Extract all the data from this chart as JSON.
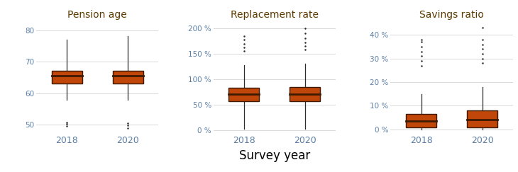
{
  "panels": [
    {
      "title": "Pension age",
      "ylim": [
        47,
        83
      ],
      "yticks": [
        50,
        60,
        70,
        80
      ],
      "yticklabels": [
        "50",
        "60",
        "70",
        "80"
      ],
      "years": [
        "2018",
        "2020"
      ],
      "boxes": [
        {
          "q1": 63,
          "median": 65.5,
          "q3": 67,
          "whislo": 58,
          "whishi": 77,
          "fliers_lo": [
            49.5,
            50.2,
            50.8
          ],
          "fliers_hi": []
        },
        {
          "q1": 63,
          "median": 65.5,
          "q3": 67,
          "whislo": 58,
          "whishi": 78,
          "fliers_lo": [
            49.0,
            49.8,
            50.5
          ],
          "fliers_hi": []
        }
      ]
    },
    {
      "title": "Replacement rate",
      "ylim": [
        -8,
        215
      ],
      "yticks": [
        0,
        50,
        100,
        150,
        200
      ],
      "yticklabels": [
        "0 %",
        "50 %",
        "100 %",
        "150 %",
        "200 %"
      ],
      "years": [
        "2018",
        "2020"
      ],
      "boxes": [
        {
          "q1": 57,
          "median": 70,
          "q3": 83,
          "whislo": 2,
          "whishi": 127,
          "fliers_lo": [],
          "fliers_hi": [
            155,
            163,
            170,
            178,
            185
          ]
        },
        {
          "q1": 57,
          "median": 70,
          "q3": 85,
          "whislo": 2,
          "whishi": 130,
          "fliers_lo": [],
          "fliers_hi": [
            158,
            165,
            172,
            180,
            190,
            200
          ]
        }
      ]
    },
    {
      "title": "Savings ratio",
      "ylim": [
        -2,
        46
      ],
      "yticks": [
        0,
        10,
        20,
        30,
        40
      ],
      "yticklabels": [
        "0 %",
        "10 %",
        "20 %",
        "30 %",
        "40 %"
      ],
      "years": [
        "2018",
        "2020"
      ],
      "boxes": [
        {
          "q1": 1,
          "median": 3.5,
          "q3": 6.5,
          "whislo": 0,
          "whishi": 15,
          "fliers_lo": [],
          "fliers_hi": [
            27,
            29,
            31,
            33,
            35,
            37,
            38
          ]
        },
        {
          "q1": 1,
          "median": 4,
          "q3": 8,
          "whislo": 0,
          "whishi": 18,
          "fliers_lo": [],
          "fliers_hi": [
            28,
            30,
            32,
            34,
            36,
            38,
            43
          ]
        }
      ]
    }
  ],
  "box_facecolor": "#C0460A",
  "box_edgecolor": "#3D1A00",
  "whisker_color": "#2C2C2C",
  "flier_color": "#2C2C2C",
  "median_color": "#3D1A00",
  "tick_label_color": "#5B7FA6",
  "title_color": "#5B3A00",
  "xlabel": "Survey year",
  "xlabel_color": "#000000",
  "grid_color": "#D8D8D8",
  "bg_color": "#FFFFFF"
}
